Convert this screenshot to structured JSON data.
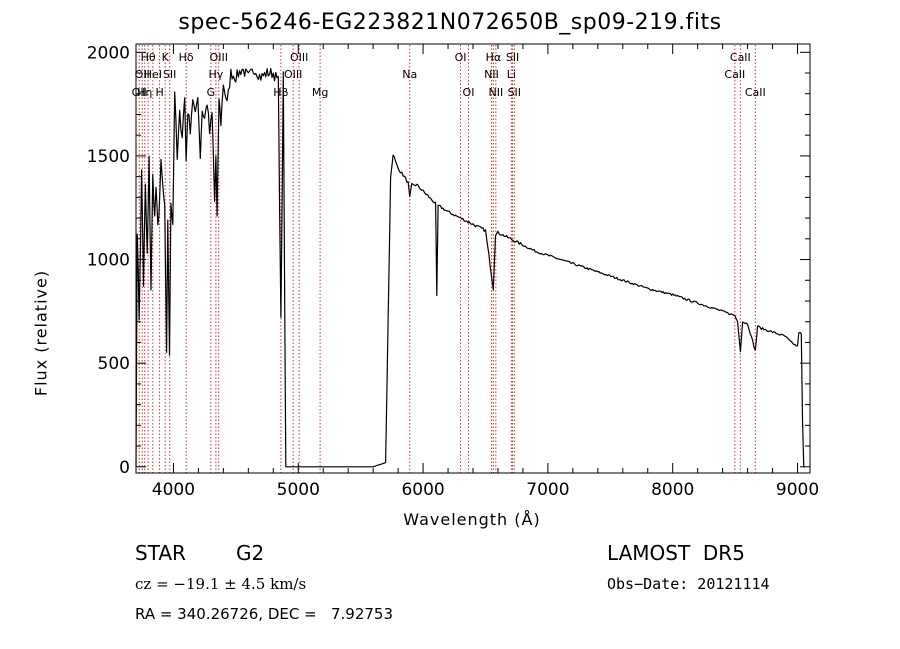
{
  "chart_data": {
    "type": "line",
    "title": "spec-56246-EG223821N072650B_sp09-219.fits",
    "xlabel": "Wavelength (Å)",
    "ylabel": "Flux (relative)",
    "xlim": [
      3700,
      9100
    ],
    "ylim": [
      -30,
      2040
    ],
    "xticks": [
      4000,
      5000,
      6000,
      7000,
      8000,
      9000
    ],
    "yticks": [
      0,
      500,
      1000,
      1500,
      2000
    ],
    "grid": false,
    "line_color": "#000000",
    "marker_color": "#cc3333",
    "series": [
      {
        "x": [
          3700,
          3710,
          3725,
          3735,
          3745,
          3760,
          3775,
          3790,
          3805,
          3820,
          3835,
          3850,
          3860,
          3875,
          3890,
          3900,
          3915,
          3930,
          3945,
          3955,
          3968,
          3980,
          3995,
          4010,
          4030,
          4050,
          4070,
          4090,
          4101,
          4115,
          4135,
          4155,
          4175,
          4195,
          4215,
          4230,
          4250,
          4270,
          4290,
          4310,
          4330,
          4340,
          4350,
          4365,
          4380,
          4400,
          4430,
          4460,
          4500,
          4550,
          4600,
          4650,
          4700,
          4750,
          4800,
          4840,
          4861,
          4880,
          4900,
          4950,
          5000,
          5100,
          5200,
          5400,
          5600,
          5700,
          5740,
          5750,
          5760,
          5780,
          5800,
          5850,
          5880,
          5893,
          5910,
          5950,
          6000,
          6050,
          6100,
          6110,
          6120,
          6150,
          6200,
          6300,
          6400,
          6500,
          6563,
          6580,
          6600,
          6700,
          6800,
          6900,
          7000,
          7200,
          7400,
          7600,
          7800,
          8000,
          8200,
          8400,
          8498,
          8520,
          8542,
          8560,
          8600,
          8662,
          8680,
          8700,
          8800,
          8900,
          8950,
          9000,
          9010,
          9030,
          9040,
          9050,
          9060
        ],
        "y": [
          0,
          1150,
          720,
          1050,
          1420,
          880,
          1350,
          1020,
          1480,
          860,
          1400,
          1200,
          1350,
          1150,
          1300,
          1460,
          1350,
          1240,
          560,
          1200,
          520,
          1280,
          1180,
          1820,
          1480,
          1700,
          1600,
          1780,
          1480,
          1720,
          1630,
          1780,
          1690,
          1800,
          1500,
          1720,
          1680,
          1760,
          1610,
          1700,
          1280,
          1500,
          1200,
          1780,
          1660,
          1850,
          1750,
          1900,
          1880,
          1920,
          1880,
          1920,
          1880,
          1900,
          1900,
          1860,
          700,
          1880,
          0,
          0,
          0,
          0,
          0,
          0,
          0,
          20,
          1400,
          1450,
          1510,
          1470,
          1440,
          1400,
          1370,
          1300,
          1360,
          1360,
          1330,
          1300,
          1270,
          820,
          1260,
          1250,
          1230,
          1200,
          1170,
          1140,
          860,
          1120,
          1130,
          1100,
          1070,
          1040,
          1020,
          980,
          940,
          900,
          860,
          830,
          790,
          750,
          730,
          700,
          560,
          700,
          690,
          560,
          680,
          670,
          650,
          630,
          600,
          580,
          650,
          640,
          220,
          0,
          0
        ]
      }
    ],
    "line_markers": [
      {
        "x": 3726,
        "label": "OII",
        "row": 2
      },
      {
        "x": 3750,
        "label": "OII",
        "row": 1
      },
      {
        "x": 3770,
        "label": "Hη",
        "row": 2
      },
      {
        "x": 3797,
        "label": "Hθ",
        "row": 0
      },
      {
        "x": 3835,
        "label": "HeI",
        "row": 1
      },
      {
        "x": 3889,
        "label": "H",
        "row": 2
      },
      {
        "x": 3934,
        "label": "K",
        "row": 0
      },
      {
        "x": 3970,
        "label": "SII",
        "row": 1
      },
      {
        "x": 4102,
        "label": "Hδ",
        "row": 0
      },
      {
        "x": 4300,
        "label": "G",
        "row": 2
      },
      {
        "x": 4340,
        "label": "Hγ",
        "row": 1
      },
      {
        "x": 4363,
        "label": "OIII",
        "row": 0
      },
      {
        "x": 4861,
        "label": "Hβ",
        "row": 2
      },
      {
        "x": 4959,
        "label": "OIII",
        "row": 1
      },
      {
        "x": 5007,
        "label": "OIII",
        "row": 0
      },
      {
        "x": 5175,
        "label": "Mg",
        "row": 2
      },
      {
        "x": 5893,
        "label": "Na",
        "row": 1
      },
      {
        "x": 6300,
        "label": "OI",
        "row": 0
      },
      {
        "x": 6364,
        "label": "OI",
        "row": 2
      },
      {
        "x": 6548,
        "label": "NII",
        "row": 1
      },
      {
        "x": 6563,
        "label": "Hα",
        "row": 0
      },
      {
        "x": 6583,
        "label": "NII",
        "row": 2
      },
      {
        "x": 6707,
        "label": "Li",
        "row": 1
      },
      {
        "x": 6717,
        "label": "SII",
        "row": 0
      },
      {
        "x": 6731,
        "label": "SII",
        "row": 2
      },
      {
        "x": 8498,
        "label": "CaII",
        "row": 1
      },
      {
        "x": 8542,
        "label": "CaII",
        "row": 0
      },
      {
        "x": 8662,
        "label": "CaII",
        "row": 2
      }
    ]
  },
  "info": {
    "class": "STAR",
    "subclass": "G2",
    "survey": "LAMOST  DR5",
    "cz": "cz = −19.1 ± 4.5 km/s",
    "obs_date": "Obs−Date: 20121114",
    "coords": "RA = 340.26726, DEC =   7.92753"
  }
}
